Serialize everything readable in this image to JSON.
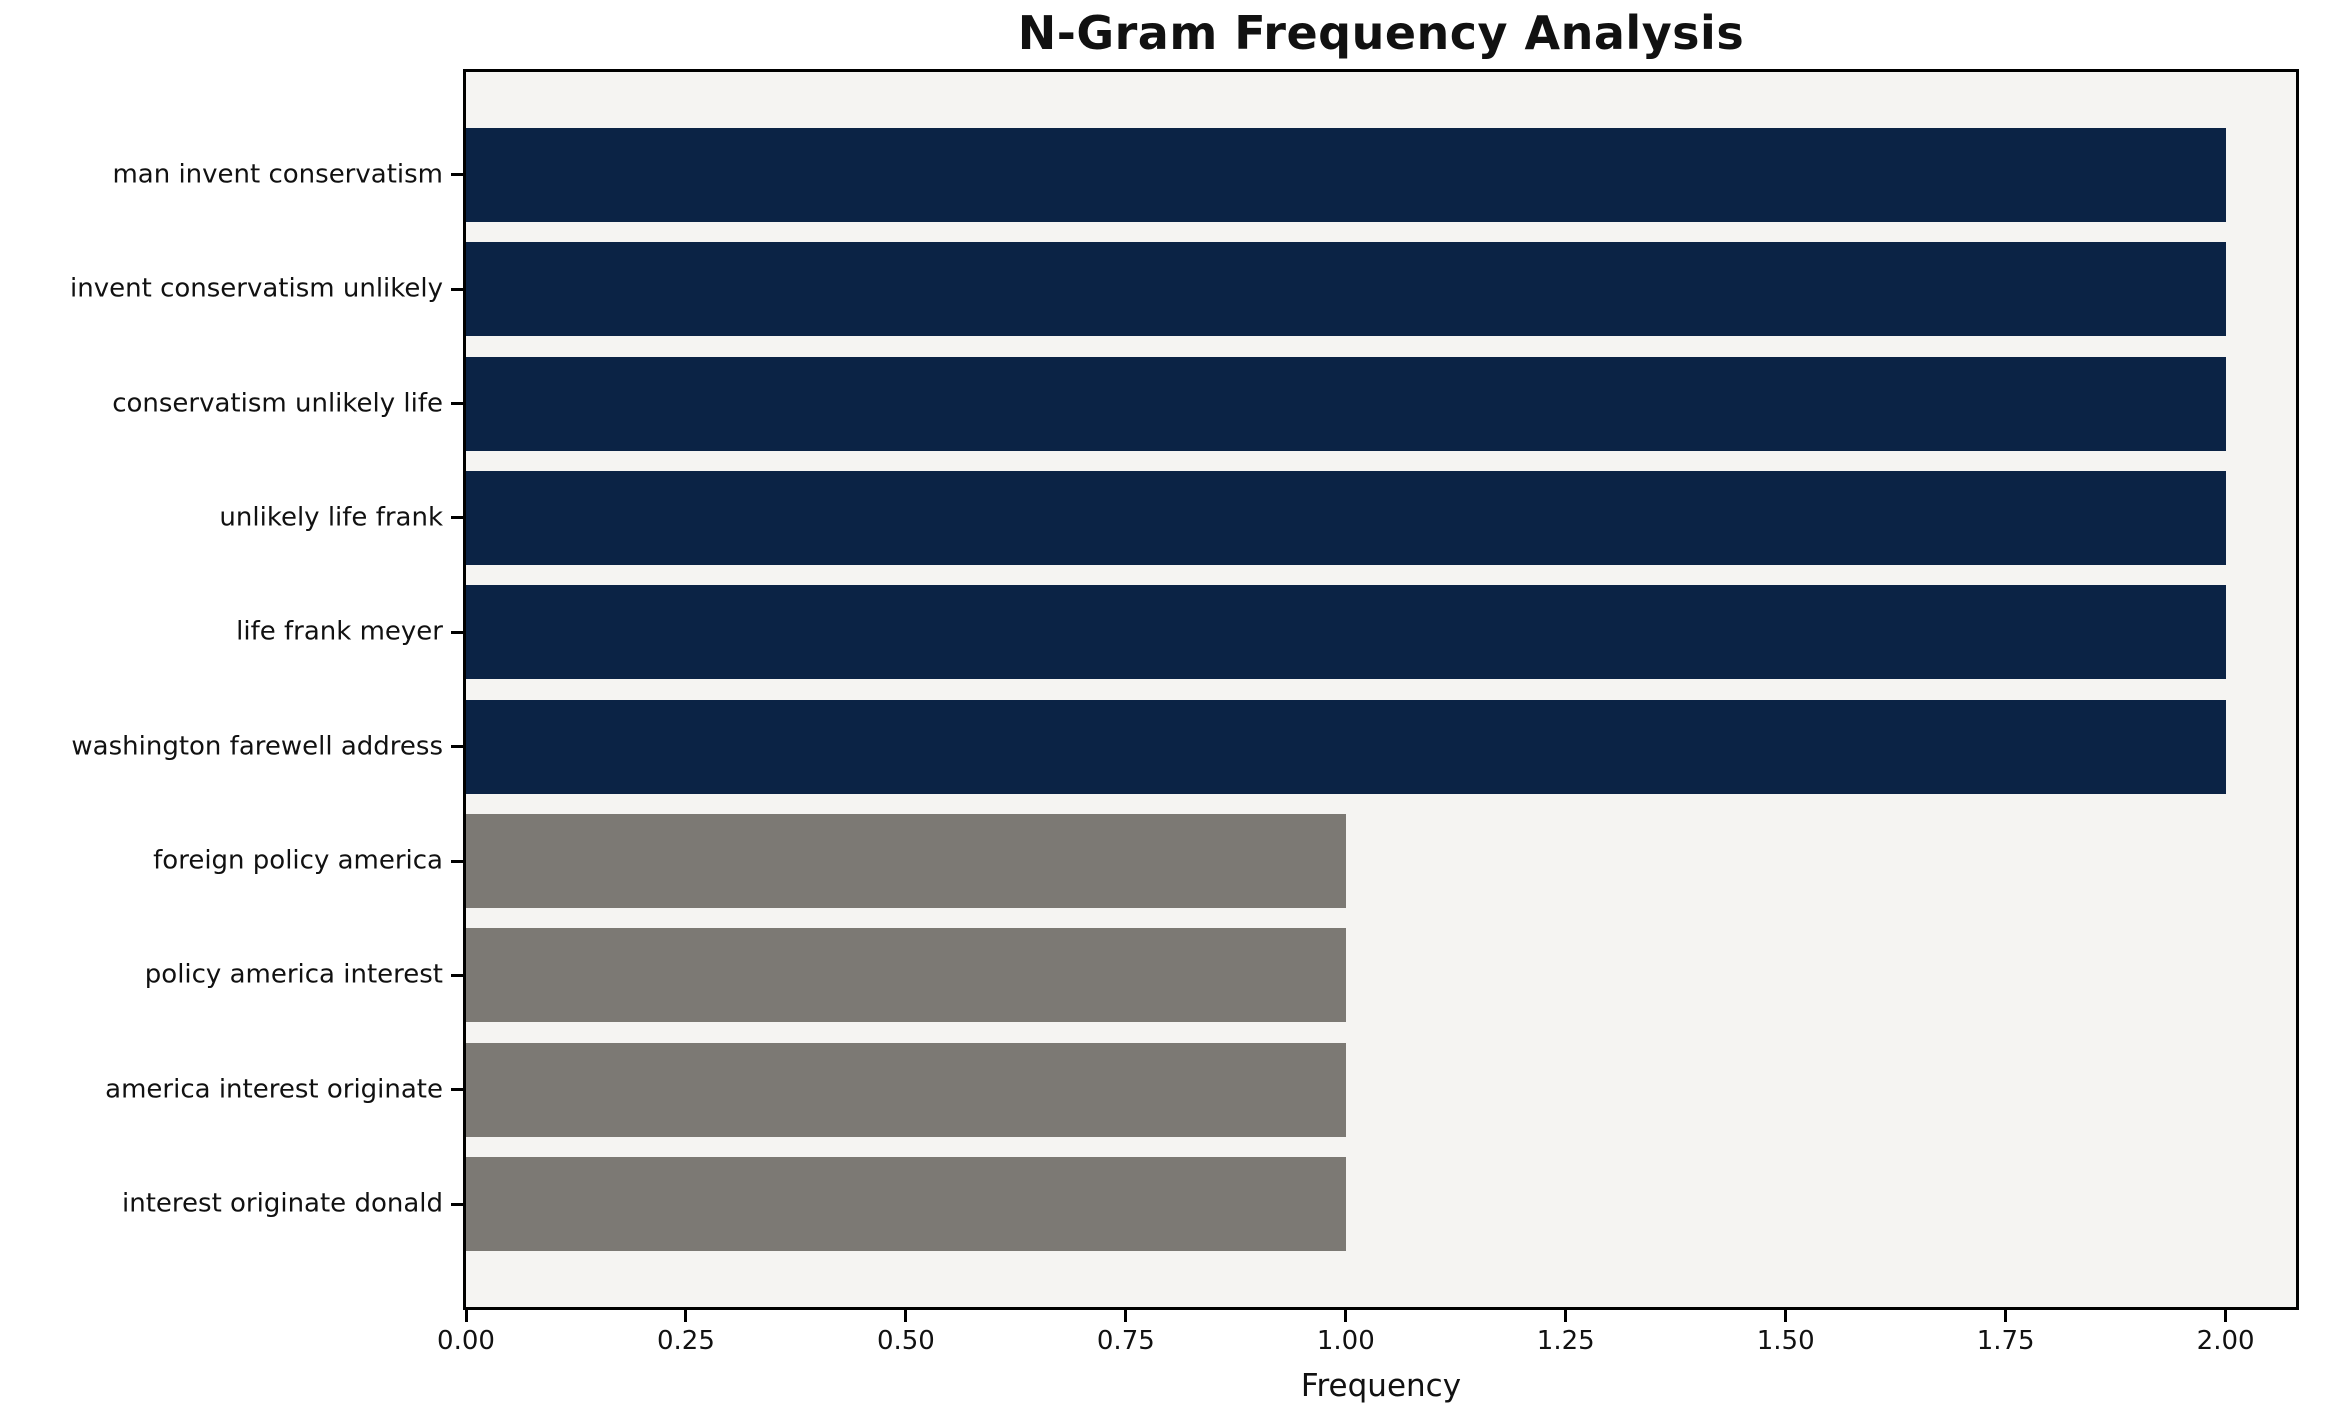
{
  "page": {
    "background": "#ffffff"
  },
  "chart_data": {
    "type": "bar",
    "orientation": "horizontal",
    "title": "N-Gram Frequency Analysis",
    "xlabel": "Frequency",
    "ylabel": "",
    "categories": [
      "man invent conservatism",
      "invent conservatism unlikely",
      "conservatism unlikely life",
      "unlikely life frank",
      "life frank meyer",
      "washington farewell address",
      "foreign policy america",
      "policy america interest",
      "america interest originate",
      "interest originate donald"
    ],
    "values": [
      2,
      2,
      2,
      2,
      2,
      2,
      1,
      1,
      1,
      1
    ],
    "bar_colors": [
      "#0b2345",
      "#0b2345",
      "#0b2345",
      "#0b2345",
      "#0b2345",
      "#0b2345",
      "#7c7974",
      "#7c7974",
      "#7c7974",
      "#7c7974"
    ],
    "xlim": [
      0,
      2.08
    ],
    "xticks": [
      0.0,
      0.25,
      0.5,
      0.75,
      1.0,
      1.25,
      1.5,
      1.75,
      2.0
    ],
    "xtick_labels": [
      "0.00",
      "0.25",
      "0.50",
      "0.75",
      "1.00",
      "1.25",
      "1.50",
      "1.75",
      "2.00"
    ],
    "plot_background": "#f5f4f2",
    "grid": false,
    "legend": null
  }
}
